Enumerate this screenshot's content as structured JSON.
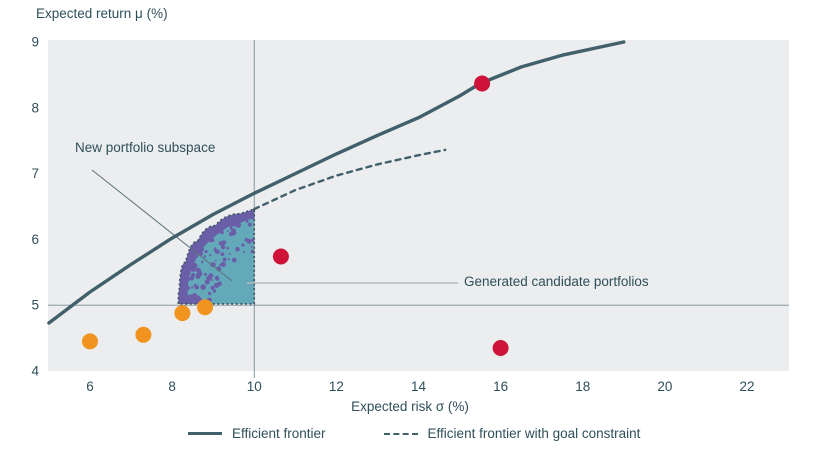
{
  "colors": {
    "plot_bg": "#EBEDEE",
    "line": "#41606C",
    "gridline": "#7C8F98",
    "text": "#2F4F5A",
    "region_fill": "#64A9BA",
    "region_border": "#3E5562",
    "scatter_purple": "#6B5EA9",
    "scatter_orange": "#F0941F",
    "scatter_red": "#CE1238",
    "connector_gray": "#B3B9BD",
    "connector_dark": "#5A7078"
  },
  "annotations": {
    "subspace_label": "New portfolio subspace",
    "candidates_label": "Generated candidate portfolios"
  },
  "legend": [
    {
      "label": "Efficient frontier",
      "style": "solid"
    },
    {
      "label": "Efficient frontier with goal constraint",
      "style": "dashed"
    }
  ],
  "chart_data": {
    "type": "line",
    "title": "",
    "xlabel": "Expected risk σ (%)",
    "ylabel": "Expected return μ (%)",
    "xlim": [
      5,
      23
    ],
    "ylim": [
      4,
      9
    ],
    "xticks": [
      6,
      8,
      10,
      12,
      14,
      16,
      18,
      20,
      22
    ],
    "yticks": [
      9,
      8,
      7,
      6,
      5,
      4
    ],
    "gridlines": {
      "horizontal_at_y": [
        5
      ],
      "vertical_at_x": [
        10
      ]
    },
    "legend_position": "bottom",
    "series": [
      {
        "name": "Efficient frontier",
        "type": "line",
        "style": "solid",
        "points": [
          [
            5,
            4.73
          ],
          [
            6,
            5.2
          ],
          [
            7,
            5.62
          ],
          [
            8,
            6.02
          ],
          [
            9,
            6.38
          ],
          [
            10,
            6.7
          ],
          [
            11,
            7.0
          ],
          [
            12,
            7.3
          ],
          [
            13,
            7.58
          ],
          [
            14,
            7.85
          ],
          [
            15,
            8.18
          ],
          [
            15.5,
            8.37
          ],
          [
            16.5,
            8.62
          ],
          [
            17.5,
            8.8
          ],
          [
            19,
            9.0
          ]
        ]
      },
      {
        "name": "Efficient frontier with goal constraint",
        "type": "line",
        "style": "dashed",
        "points": [
          [
            10,
            6.46
          ],
          [
            11,
            6.75
          ],
          [
            12,
            6.97
          ],
          [
            13,
            7.14
          ],
          [
            14,
            7.28
          ],
          [
            14.65,
            7.36
          ]
        ]
      },
      {
        "name": "orange-portfolio-dots",
        "type": "scatter",
        "color_key": "scatter_orange",
        "points": [
          [
            6.0,
            4.45
          ],
          [
            7.3,
            4.55
          ],
          [
            8.25,
            4.88
          ],
          [
            8.8,
            4.97
          ]
        ]
      },
      {
        "name": "red-portfolio-dots",
        "type": "scatter",
        "color_key": "scatter_red",
        "points": [
          [
            10.65,
            5.74
          ],
          [
            15.55,
            8.37
          ],
          [
            16.0,
            4.35
          ]
        ]
      }
    ],
    "subspace_region": {
      "description": "New portfolio subspace filled region with generated candidate portfolio scatter",
      "boundary_curve": [
        [
          8.15,
          5.02
        ],
        [
          8.2,
          5.45
        ],
        [
          8.45,
          5.85
        ],
        [
          8.8,
          6.1
        ],
        [
          9.3,
          6.32
        ],
        [
          10,
          6.46
        ]
      ],
      "bottom_right_corner": [
        10,
        5.02
      ],
      "speckle_count": 120
    }
  }
}
